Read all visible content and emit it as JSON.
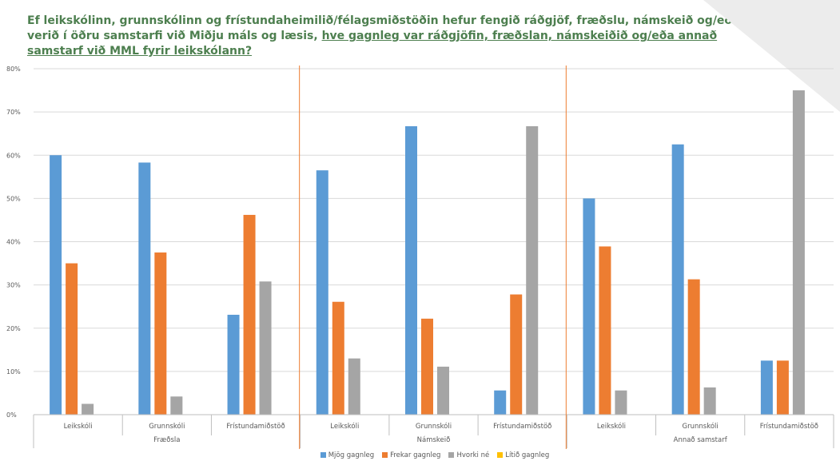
{
  "header": {
    "title_part1": "Ef leikskólinn, grunnskólinn og frístundaheimilið/félagsmiðstöðin hefur fengið ráðgjöf, fræðslu, námskeið og/eða verið í öðru samstarfi við Miðju máls og læsis, ",
    "title_part2": "hve gagnleg var ráðgjöfin, fræðslan, námskeiðið og/eða annað samstarf við MML fyrir leikskólann?",
    "logo_icon": "municipal-crest-icon"
  },
  "chart_data": {
    "type": "bar",
    "title": "Ef leikskólinn, grunnskólinn og frístundaheimilið/félagsmiðstöðin hefur fengið ráðgjöf, fræðslu, námskeið og/eða verið í öðru samstarfi við Miðju máls og læsis, hve gagnleg var ráðgjöfin, fræðslan, námskeiðið og/eða annað samstarf við MML fyrir leikskólann?",
    "xlabel": "",
    "ylabel": "",
    "ylim": [
      0,
      80
    ],
    "yticks": [
      "0%",
      "10%",
      "20%",
      "30%",
      "40%",
      "50%",
      "60%",
      "70%",
      "80%"
    ],
    "grid": true,
    "legend_position": "bottom",
    "groups": [
      {
        "name": "Fræðsla",
        "categories": [
          "Leikskóli",
          "Grunnskóli",
          "Frístundamiðstöð"
        ]
      },
      {
        "name": "Námskeið",
        "categories": [
          "Leikskóli",
          "Grunnskóli",
          "Frístundamiðstöð"
        ]
      },
      {
        "name": "Annað samstarf",
        "categories": [
          "Leikskóli",
          "Grunnskóli",
          "Frístundamiðstöð"
        ]
      }
    ],
    "series": [
      {
        "name": "Mjög gagnleg",
        "color": "#5b9bd5",
        "values": [
          60,
          58.3,
          23.1,
          56.5,
          66.7,
          5.6,
          50,
          62.5,
          12.5
        ]
      },
      {
        "name": "Frekar gagnleg",
        "color": "#ed7d31",
        "values": [
          35,
          37.5,
          46.2,
          26.1,
          22.2,
          27.8,
          38.9,
          31.3,
          12.5
        ]
      },
      {
        "name": "Hvorki né",
        "color": "#a5a5a5",
        "values": [
          2.5,
          4.2,
          30.8,
          13,
          11.1,
          66.7,
          5.6,
          6.3,
          75
        ]
      },
      {
        "name": "Lítið gagnleg",
        "color": "#ffc000",
        "values": [
          0,
          0,
          0,
          0,
          0,
          0,
          0,
          0,
          0
        ]
      }
    ]
  }
}
